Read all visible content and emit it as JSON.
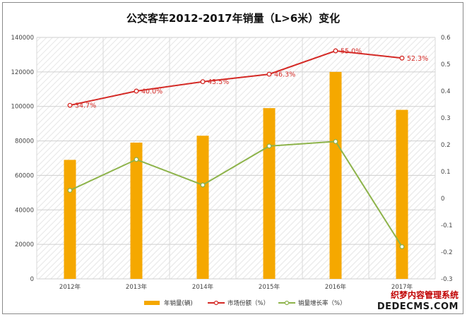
{
  "chart_data": {
    "type": "bar",
    "title": "公交客车2012-2017年销量（L>6米）变化",
    "categories": [
      "2012年",
      "2013年",
      "2014年",
      "2015年",
      "2016年",
      "2017年"
    ],
    "left_axis": {
      "min": 0,
      "max": 140000,
      "step": 20000,
      "ticks": [
        "0",
        "20000",
        "40000",
        "60000",
        "80000",
        "100000",
        "120000",
        "140000"
      ]
    },
    "right_axis": {
      "min": -0.3,
      "max": 0.6,
      "step": 0.1,
      "ticks": [
        "-0.3",
        "-0.2",
        "-0.1",
        "0",
        "0.1",
        "0.2",
        "0.3",
        "0.4",
        "0.5",
        "0.6"
      ]
    },
    "series": [
      {
        "name": "年销量(辆)",
        "type": "bar",
        "axis": "left",
        "color": "#f5a800",
        "values": [
          69000,
          79000,
          83000,
          99000,
          120000,
          98000
        ]
      },
      {
        "name": "市场份额（%）",
        "type": "line",
        "axis": "right",
        "color": "#d42a26",
        "values": [
          0.347,
          0.4,
          0.435,
          0.463,
          0.55,
          0.523
        ],
        "labels": [
          "34.7%",
          "40.0%",
          "43.5%",
          "46.3%",
          "55.0%",
          "52.3%"
        ]
      },
      {
        "name": "销量增长率（%）",
        "type": "line",
        "axis": "right",
        "color": "#8db34a",
        "values": [
          0.03,
          0.145,
          0.05,
          0.195,
          0.212,
          -0.18
        ]
      }
    ],
    "grid": true,
    "legend": "bottom"
  },
  "watermark": {
    "line1": "织梦内容管理系统",
    "line2": "DEDECMS.COM"
  }
}
